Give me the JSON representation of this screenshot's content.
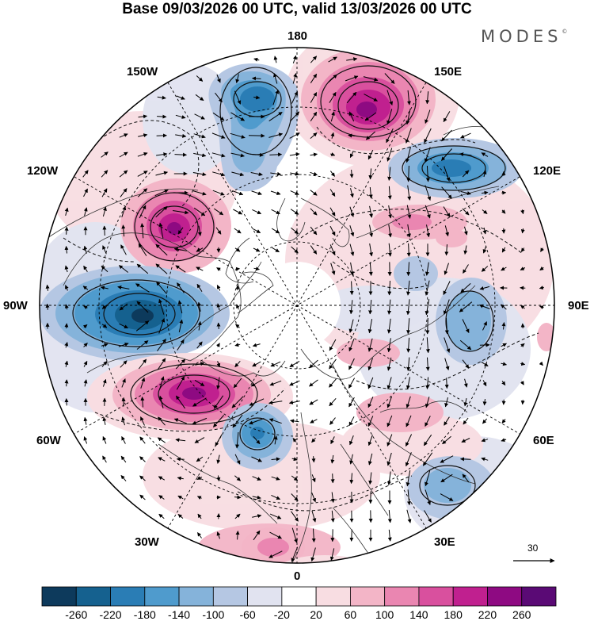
{
  "title": "Base 09/03/2026 00 UTC, valid 13/03/2026 00 UTC",
  "brand": "MODES",
  "brand_mark": "©",
  "longitude_labels": {
    "top": "180",
    "bottom": "0",
    "left": "90W",
    "right": "90E",
    "upper_left_1": "150W",
    "upper_left_2": "120W",
    "lower_left_1": "60W",
    "lower_left_2": "30W",
    "upper_right_1": "150E",
    "upper_right_2": "120E",
    "lower_right_1": "60E",
    "lower_right_2": "30E"
  },
  "vector_scale": {
    "value": "30"
  },
  "colorbar": {
    "ticks": [
      "-260",
      "-220",
      "-180",
      "-140",
      "-100",
      "-60",
      "-20",
      "20",
      "60",
      "100",
      "140",
      "180",
      "220",
      "260"
    ],
    "colors": [
      "#0d3a5c",
      "#15618f",
      "#2a7db5",
      "#4f9bcd",
      "#85b3da",
      "#b5c7e3",
      "#e1e3f0",
      "#ffffff",
      "#f8dde2",
      "#f3b5c7",
      "#ea86b1",
      "#d9509e",
      "#c0208f",
      "#8e0a82",
      "#5a0a75"
    ]
  },
  "anomaly_blobs": [
    {
      "sign": "negative",
      "value": -220,
      "region": "north-pacific"
    },
    {
      "sign": "positive",
      "value": 260,
      "region": "east-siberia"
    },
    {
      "sign": "negative",
      "value": -200,
      "region": "far-east"
    },
    {
      "sign": "positive",
      "value": 260,
      "region": "northwest-america"
    },
    {
      "sign": "negative",
      "value": -260,
      "region": "hudson-bay"
    },
    {
      "sign": "positive",
      "value": 260,
      "region": "labrador-sea"
    },
    {
      "sign": "negative",
      "value": -180,
      "region": "greenland-sea"
    },
    {
      "sign": "negative",
      "value": -140,
      "region": "central-siberia"
    },
    {
      "sign": "positive",
      "value": 100,
      "region": "arctic-siberia"
    },
    {
      "sign": "positive",
      "value": 60,
      "region": "europe"
    },
    {
      "sign": "negative",
      "value": -100,
      "region": "eastern-europe"
    },
    {
      "sign": "positive",
      "value": 100,
      "region": "north-atlantic"
    }
  ]
}
